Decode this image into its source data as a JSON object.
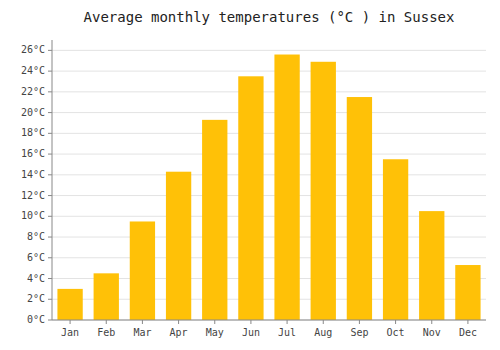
{
  "chart_data": {
    "type": "bar",
    "title": "Average monthly temperatures (°C ) in Sussex",
    "categories": [
      "Jan",
      "Feb",
      "Mar",
      "Apr",
      "May",
      "Jun",
      "Jul",
      "Aug",
      "Sep",
      "Oct",
      "Nov",
      "Dec"
    ],
    "values": [
      3.0,
      4.5,
      9.5,
      14.3,
      19.3,
      23.5,
      25.6,
      24.9,
      21.5,
      15.5,
      10.5,
      5.3
    ],
    "color": "#FFC107",
    "ylim": [
      0,
      27
    ],
    "yticks": [
      {
        "value": 0,
        "label": "0°C"
      },
      {
        "value": 2,
        "label": "2°C"
      },
      {
        "value": 4,
        "label": "4°C"
      },
      {
        "value": 6,
        "label": "6°C"
      },
      {
        "value": 8,
        "label": "8°C"
      },
      {
        "value": 10,
        "label": "10°C"
      },
      {
        "value": 12,
        "label": "12°C"
      },
      {
        "value": 14,
        "label": "14°C"
      },
      {
        "value": 16,
        "label": "16°C"
      },
      {
        "value": 18,
        "label": "18°C"
      },
      {
        "value": 20,
        "label": "20°C"
      },
      {
        "value": 22,
        "label": "22°C"
      },
      {
        "value": 24,
        "label": "24°C"
      },
      {
        "value": 26,
        "label": "26°C"
      }
    ],
    "grid": true
  }
}
